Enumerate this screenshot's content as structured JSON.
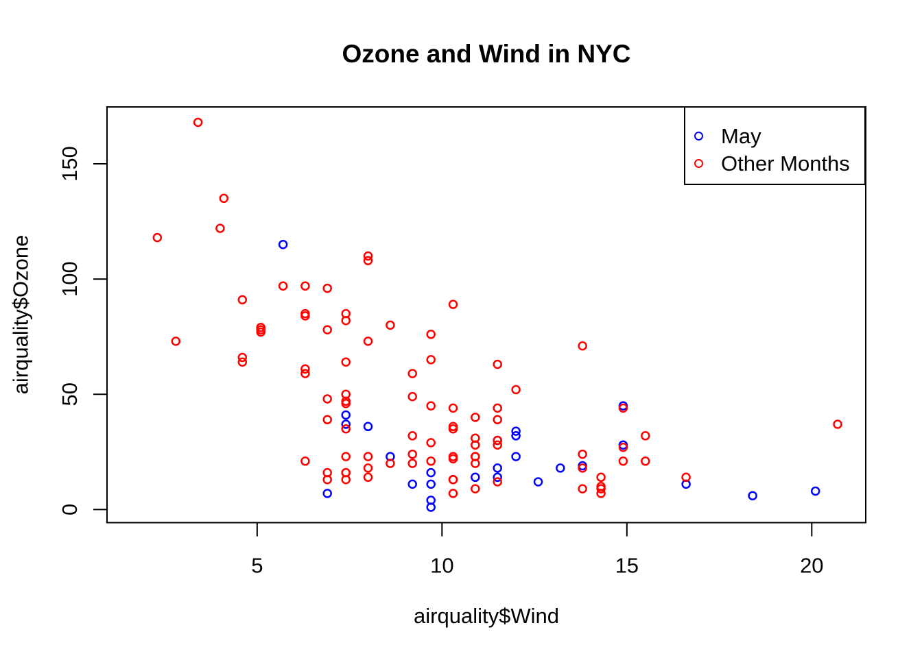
{
  "page": {
    "background": "#FFFFFF"
  },
  "chart_data": {
    "type": "scatter",
    "title": "Ozone and Wind in NYC",
    "xlabel": "airquality$Wind",
    "ylabel": "airquality$Ozone",
    "xlim": [
      0.94,
      21.46
    ],
    "ylim": [
      -5.68,
      174.68
    ],
    "x_ticks": [
      5,
      10,
      15,
      20
    ],
    "y_ticks": [
      0,
      50,
      100,
      150
    ],
    "grid": false,
    "marker": "open-circle",
    "axis_color": "#000000",
    "legend": {
      "position": "top-right",
      "border": true
    },
    "series": [
      {
        "name": "May",
        "color": "#0000FF",
        "points": [
          [
            7.4,
            41
          ],
          [
            8.0,
            36
          ],
          [
            12.6,
            12
          ],
          [
            11.5,
            18
          ],
          [
            14.9,
            28
          ],
          [
            8.6,
            23
          ],
          [
            13.8,
            19
          ],
          [
            20.1,
            8
          ],
          [
            6.9,
            7
          ],
          [
            9.7,
            16
          ],
          [
            9.2,
            11
          ],
          [
            10.9,
            14
          ],
          [
            13.2,
            18
          ],
          [
            11.5,
            14
          ],
          [
            12.0,
            34
          ],
          [
            18.4,
            6
          ],
          [
            11.5,
            30
          ],
          [
            9.7,
            11
          ],
          [
            9.7,
            1
          ],
          [
            16.6,
            11
          ],
          [
            9.7,
            4
          ],
          [
            12.0,
            32
          ],
          [
            12.0,
            23
          ],
          [
            14.9,
            45
          ],
          [
            5.7,
            115
          ],
          [
            7.4,
            37
          ]
        ]
      },
      {
        "name": "Other Months",
        "color": "#FF0000",
        "points": [
          [
            9.7,
            29
          ],
          [
            13.8,
            71
          ],
          [
            11.5,
            39
          ],
          [
            8.0,
            23
          ],
          [
            14.9,
            21
          ],
          [
            20.7,
            37
          ],
          [
            9.2,
            20
          ],
          [
            11.5,
            12
          ],
          [
            10.3,
            13
          ],
          [
            4.1,
            135
          ],
          [
            9.2,
            49
          ],
          [
            9.2,
            32
          ],
          [
            4.6,
            64
          ],
          [
            10.9,
            40
          ],
          [
            5.1,
            77
          ],
          [
            6.3,
            97
          ],
          [
            5.7,
            97
          ],
          [
            7.4,
            85
          ],
          [
            14.3,
            10
          ],
          [
            14.9,
            27
          ],
          [
            14.3,
            7
          ],
          [
            6.9,
            48
          ],
          [
            10.3,
            35
          ],
          [
            6.3,
            61
          ],
          [
            5.1,
            79
          ],
          [
            11.5,
            63
          ],
          [
            6.9,
            16
          ],
          [
            8.6,
            80
          ],
          [
            8.0,
            108
          ],
          [
            8.6,
            20
          ],
          [
            12.0,
            52
          ],
          [
            7.4,
            82
          ],
          [
            7.4,
            50
          ],
          [
            7.4,
            64
          ],
          [
            9.2,
            59
          ],
          [
            6.9,
            39
          ],
          [
            13.8,
            9
          ],
          [
            7.4,
            16
          ],
          [
            6.9,
            78
          ],
          [
            7.4,
            35
          ],
          [
            4.6,
            66
          ],
          [
            4.0,
            122
          ],
          [
            10.3,
            89
          ],
          [
            8.0,
            110
          ],
          [
            11.5,
            44
          ],
          [
            11.5,
            28
          ],
          [
            9.7,
            65
          ],
          [
            10.3,
            22
          ],
          [
            6.3,
            59
          ],
          [
            7.4,
            23
          ],
          [
            10.9,
            31
          ],
          [
            10.3,
            44
          ],
          [
            15.5,
            21
          ],
          [
            14.3,
            9
          ],
          [
            9.7,
            45
          ],
          [
            3.4,
            168
          ],
          [
            8.0,
            73
          ],
          [
            9.7,
            76
          ],
          [
            2.3,
            118
          ],
          [
            6.3,
            84
          ],
          [
            6.3,
            85
          ],
          [
            6.9,
            96
          ],
          [
            5.1,
            78
          ],
          [
            2.8,
            73
          ],
          [
            4.6,
            91
          ],
          [
            7.4,
            47
          ],
          [
            15.5,
            32
          ],
          [
            10.9,
            20
          ],
          [
            10.3,
            23
          ],
          [
            10.9,
            23
          ],
          [
            9.7,
            21
          ],
          [
            9.2,
            24
          ],
          [
            14.9,
            44
          ],
          [
            6.3,
            21
          ],
          [
            10.9,
            28
          ],
          [
            10.9,
            9
          ],
          [
            7.4,
            13
          ],
          [
            7.4,
            46
          ],
          [
            8.0,
            18
          ],
          [
            6.9,
            13
          ],
          [
            13.8,
            24
          ],
          [
            7.4,
            16
          ],
          [
            10.3,
            13
          ],
          [
            10.9,
            23
          ],
          [
            10.3,
            36
          ],
          [
            10.3,
            7
          ],
          [
            8.0,
            14
          ],
          [
            11.5,
            30
          ],
          [
            14.3,
            14
          ],
          [
            16.6,
            14
          ],
          [
            13.8,
            18
          ]
        ]
      }
    ]
  }
}
